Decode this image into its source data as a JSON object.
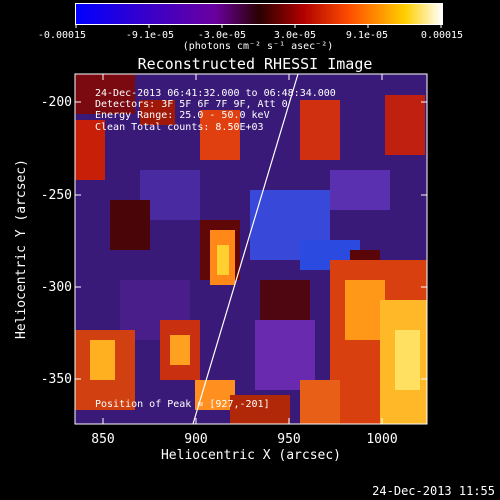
{
  "colorbar": {
    "tick_labels": [
      "-0.00015",
      "-9.1e-05",
      "-3.0e-05",
      "3.0e-05",
      "9.1e-05",
      "0.00015"
    ],
    "units_label": "(photons cm⁻² s⁻¹ asec⁻²)",
    "gradient_colors": [
      "#0000ff",
      "#3a00c8",
      "#6a00a0",
      "#2a0000",
      "#b00000",
      "#ff5000",
      "#ffd000",
      "#ffffff"
    ]
  },
  "plot": {
    "title": "Reconstructed RHESSI Image",
    "xlabel": "Heliocentric X (arcsec)",
    "ylabel": "Heliocentric Y (arcsec)",
    "x_tick_labels": [
      "850",
      "900",
      "950",
      "1000"
    ],
    "y_tick_labels": [
      "-200",
      "-250",
      "-300",
      "-350"
    ],
    "xlim": [
      835,
      1025
    ],
    "ylim": [
      -375,
      -185
    ],
    "info_lines": [
      "24-Dec-2013 06:41:32.000 to 06:48:34.000",
      "Detectors: 3F 5F 6F 7F 9F, Att 0",
      "Energy Range: 25.0 - 50.0 keV",
      "Clean    Total counts: 8.50E+03"
    ],
    "peak_label": "Position of Peak = [927,-201]"
  },
  "footer": {
    "timestamp": "24-Dec-2013 11:55"
  }
}
